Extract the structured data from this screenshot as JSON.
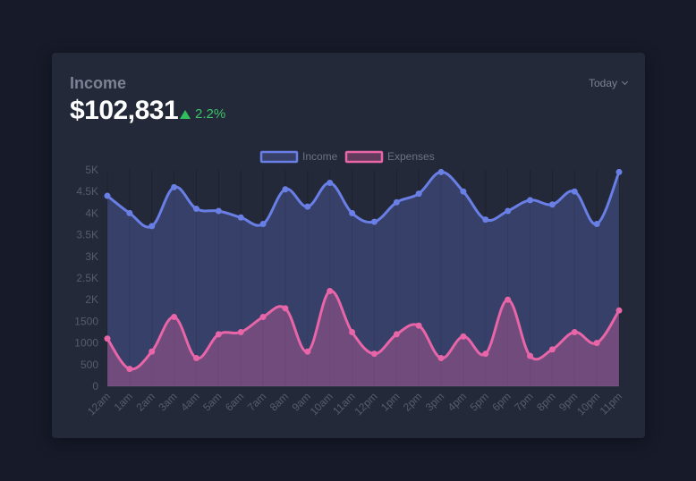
{
  "header": {
    "title": "Income",
    "amount": "$102,831",
    "change": "2.2%",
    "period": "Today"
  },
  "colors": {
    "income": "#6a7fe6",
    "expenses": "#e865a8",
    "positive": "#2fbf5d"
  },
  "chart_data": {
    "type": "area",
    "categories": [
      "12am",
      "1am",
      "2am",
      "3am",
      "4am",
      "5am",
      "6am",
      "7am",
      "8am",
      "9am",
      "10am",
      "11am",
      "12pm",
      "1pm",
      "2pm",
      "3pm",
      "4pm",
      "5pm",
      "6pm",
      "7pm",
      "8pm",
      "9pm",
      "10pm",
      "11pm"
    ],
    "series": [
      {
        "name": "Income",
        "values": [
          4400,
          4000,
          3700,
          4600,
          4100,
          4050,
          3900,
          3750,
          4550,
          4150,
          4700,
          4000,
          3800,
          4250,
          4450,
          4950,
          4500,
          3850,
          4050,
          4300,
          4200,
          4500,
          3750,
          4950
        ]
      },
      {
        "name": "Expenses",
        "values": [
          1100,
          400,
          800,
          1600,
          650,
          1200,
          1250,
          1600,
          1800,
          800,
          2200,
          1250,
          750,
          1200,
          1400,
          650,
          1150,
          750,
          2000,
          700,
          850,
          1250,
          1000,
          1750
        ]
      }
    ],
    "yticks": [
      "0",
      "500",
      "1000",
      "1500",
      "2K",
      "2.5K",
      "3K",
      "3.5K",
      "4K",
      "4.5K",
      "5K"
    ],
    "ylim": [
      0,
      5000
    ],
    "legend": "top-center",
    "grid": false
  }
}
